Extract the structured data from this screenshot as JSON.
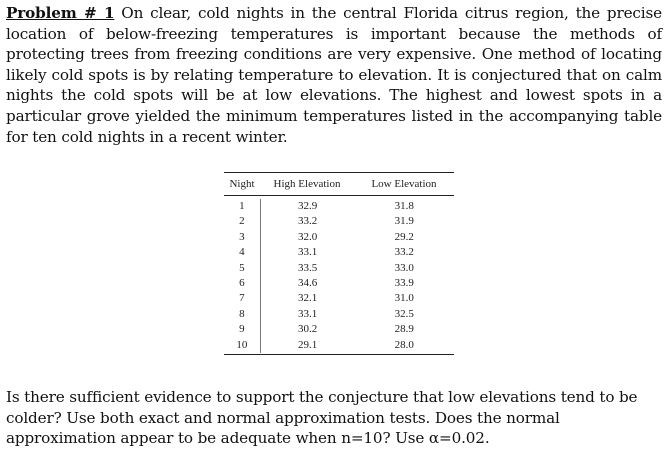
{
  "problem": {
    "heading": "Problem # 1",
    "text": "On clear, cold nights in the central Florida citrus region, the precise location of below-freezing temperatures is important because the methods of protecting trees from freezing conditions are very expensive. One method of locating likely cold spots is by relating temperature to elevation. It is conjectured that on calm nights the cold spots will be at low elevations. The highest and lowest spots in a particular grove yielded the minimum temperatures listed in the accompanying table for ten cold nights in a recent winter."
  },
  "table": {
    "headers": {
      "night": "Night",
      "high": "High Elevation",
      "low": "Low Elevation"
    },
    "rows": [
      {
        "night": "1",
        "high": "32.9",
        "low": "31.8"
      },
      {
        "night": "2",
        "high": "33.2",
        "low": "31.9"
      },
      {
        "night": "3",
        "high": "32.0",
        "low": "29.2"
      },
      {
        "night": "4",
        "high": "33.1",
        "low": "33.2"
      },
      {
        "night": "5",
        "high": "33.5",
        "low": "33.0"
      },
      {
        "night": "6",
        "high": "34.6",
        "low": "33.9"
      },
      {
        "night": "7",
        "high": "32.1",
        "low": "31.0"
      },
      {
        "night": "8",
        "high": "33.1",
        "low": "32.5"
      },
      {
        "night": "9",
        "high": "30.2",
        "low": "28.9"
      },
      {
        "night": "10",
        "high": "29.1",
        "low": "28.0"
      }
    ]
  },
  "question": {
    "text": "Is there sufficient evidence to support the conjecture that low elevations tend to be colder? Use both exact and normal approximation tests. Does the normal approximation appear to be adequate when n=10? Use α=0.02."
  }
}
